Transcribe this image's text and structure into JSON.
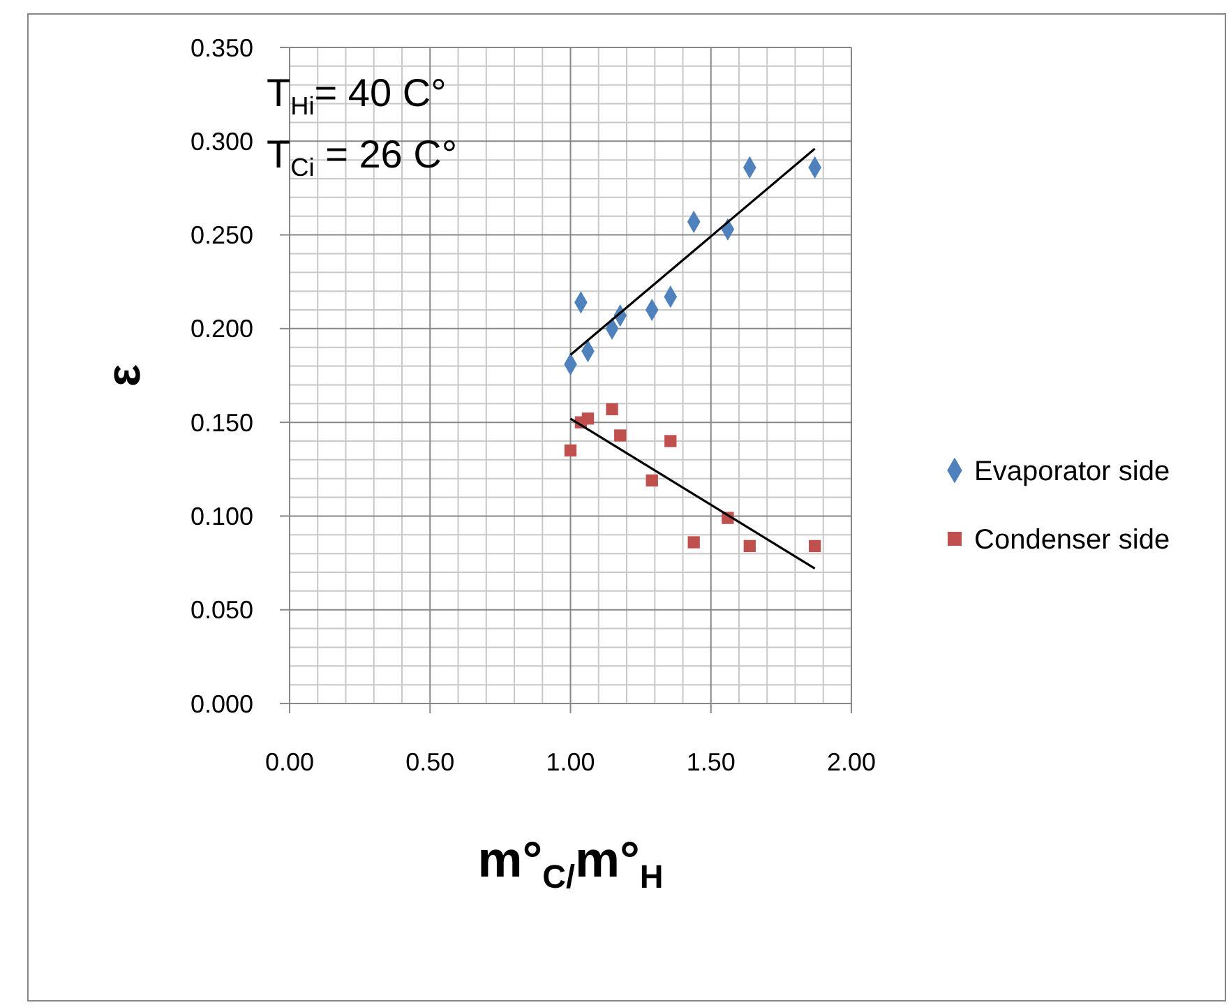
{
  "chart_data": {
    "type": "scatter",
    "xlabel": "m°$_{C/}$m°$_{H}$",
    "ylabel": "ε",
    "annotations": [
      "T$_{Hi}$= 40 C°",
      "T$_{Ci}$ = 26 C°"
    ],
    "xlim": [
      0,
      2
    ],
    "xticks": [
      {
        "value": 0,
        "label": "0.00"
      },
      {
        "value": 0.5,
        "label": "0.50"
      },
      {
        "value": 1,
        "label": "1.00"
      },
      {
        "value": 1.5,
        "label": "1.50"
      },
      {
        "value": 2,
        "label": "2.00"
      }
    ],
    "ylim": [
      0,
      0.35
    ],
    "yticks": [
      {
        "value": 0,
        "label": "0.000"
      },
      {
        "value": 0.05,
        "label": "0.050"
      },
      {
        "value": 0.1,
        "label": "0.100"
      },
      {
        "value": 0.15,
        "label": "0.150"
      },
      {
        "value": 0.2,
        "label": "0.200"
      },
      {
        "value": 0.25,
        "label": "0.250"
      },
      {
        "value": 0.3,
        "label": "0.300"
      },
      {
        "value": 0.35,
        "label": "0.350"
      }
    ],
    "grid": true,
    "legend": "right",
    "series": [
      {
        "name": "Evaporator side",
        "color": "#4f81bd",
        "marker": "diamond",
        "x": [
          1.0,
          1.037,
          1.062,
          1.148,
          1.177,
          1.29,
          1.356,
          1.439,
          1.56,
          1.638,
          1.87
        ],
        "values": [
          0.181,
          0.214,
          0.188,
          0.2,
          0.207,
          0.21,
          0.217,
          0.257,
          0.253,
          0.286,
          0.286
        ]
      },
      {
        "name": "Condenser side",
        "color": "#c0504d",
        "marker": "square",
        "x": [
          1.0,
          1.037,
          1.062,
          1.148,
          1.177,
          1.29,
          1.356,
          1.439,
          1.56,
          1.638,
          1.87
        ],
        "values": [
          0.135,
          0.15,
          0.152,
          0.157,
          0.143,
          0.119,
          0.14,
          0.086,
          0.099,
          0.084,
          0.084
        ]
      },
      {
        "type": "line",
        "color": "#000000",
        "marker": "none",
        "x": [
          1.0,
          1.87
        ],
        "values": [
          0.186,
          0.296
        ]
      },
      {
        "type": "line",
        "color": "#000000",
        "marker": "none",
        "x": [
          1.0,
          1.87
        ],
        "values": [
          0.152,
          0.072
        ]
      }
    ]
  }
}
